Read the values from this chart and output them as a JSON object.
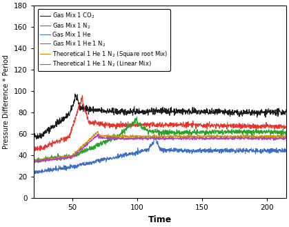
{
  "title": "",
  "xlabel": "Time",
  "ylabel": "Pressure Difference * Period",
  "xlim": [
    20,
    215
  ],
  "ylim": [
    0,
    180
  ],
  "yticks": [
    0,
    20,
    40,
    60,
    80,
    100,
    120,
    140,
    160,
    180
  ],
  "xticks": [
    50,
    100,
    150,
    200
  ],
  "legend_labels": [
    "Gas Mix 1 CO$_2$",
    "Gas Mix 1 N$_2$",
    "Gas Mix 1 He",
    "Gas Mix 1 He 1 N$_2$",
    "Theoretical 1 He 1 N$_2$ (Square root Mix)",
    "Theoretical 1 He 1 N$_2$ (Linear Mix)"
  ],
  "colors": [
    "#1a1a1a",
    "#e8342a",
    "#3a6fc4",
    "#2ca02c",
    "#c8960a",
    "#b044c0"
  ],
  "seed": 42,
  "figsize": [
    4.19,
    3.29
  ],
  "dpi": 100
}
